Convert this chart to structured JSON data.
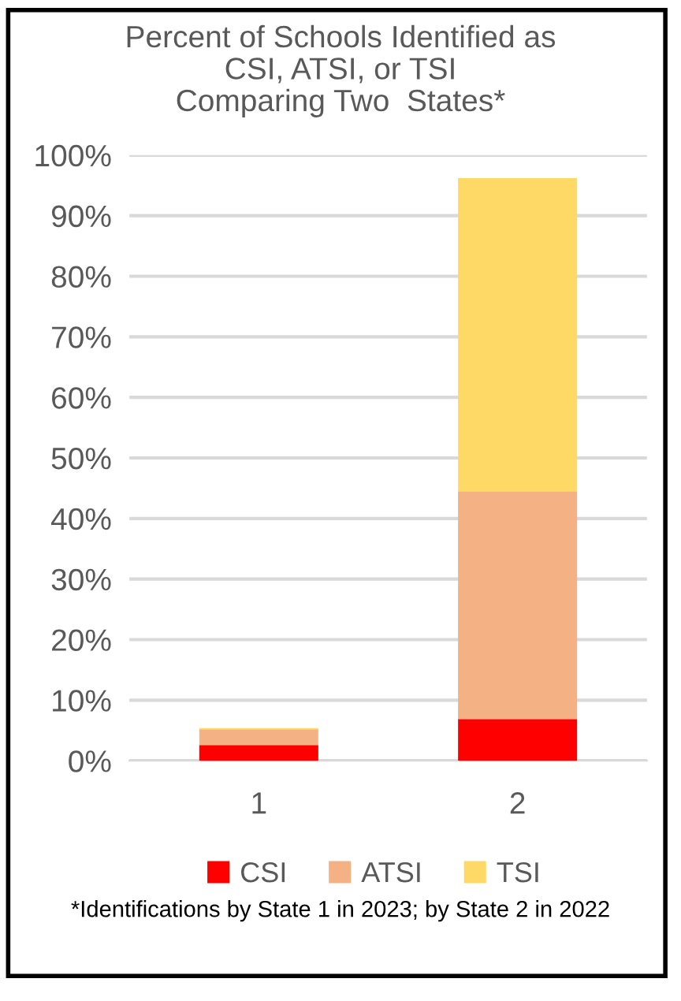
{
  "chart_data": {
    "type": "bar",
    "title": "Percent of Schools Identified as\nCSI, ATSI, or TSI\nComparing Two  States*",
    "categories": [
      "1",
      "2"
    ],
    "stacked": true,
    "series": [
      {
        "name": "CSI",
        "color": "#ff0000",
        "values": [
          2.6,
          6.9
        ]
      },
      {
        "name": "ATSI",
        "color": "#f4b183",
        "values": [
          2.6,
          37.6
        ]
      },
      {
        "name": "TSI",
        "color": "#ffd966",
        "values": [
          0.2,
          51.7
        ]
      }
    ],
    "ylim": [
      0,
      100
    ],
    "yticks": [
      {
        "value": 0,
        "label": "0%"
      },
      {
        "value": 10,
        "label": "10%"
      },
      {
        "value": 20,
        "label": "20%"
      },
      {
        "value": 30,
        "label": "30%"
      },
      {
        "value": 40,
        "label": "40%"
      },
      {
        "value": 50,
        "label": "50%"
      },
      {
        "value": 60,
        "label": "60%"
      },
      {
        "value": 70,
        "label": "70%"
      },
      {
        "value": 80,
        "label": "80%"
      },
      {
        "value": 90,
        "label": "90%"
      },
      {
        "value": 100,
        "label": "100%"
      }
    ],
    "grid": "y",
    "legend": "bottom",
    "annotations": [
      "*Identifications by State 1 in 2023; by State 2 in 2022"
    ]
  }
}
